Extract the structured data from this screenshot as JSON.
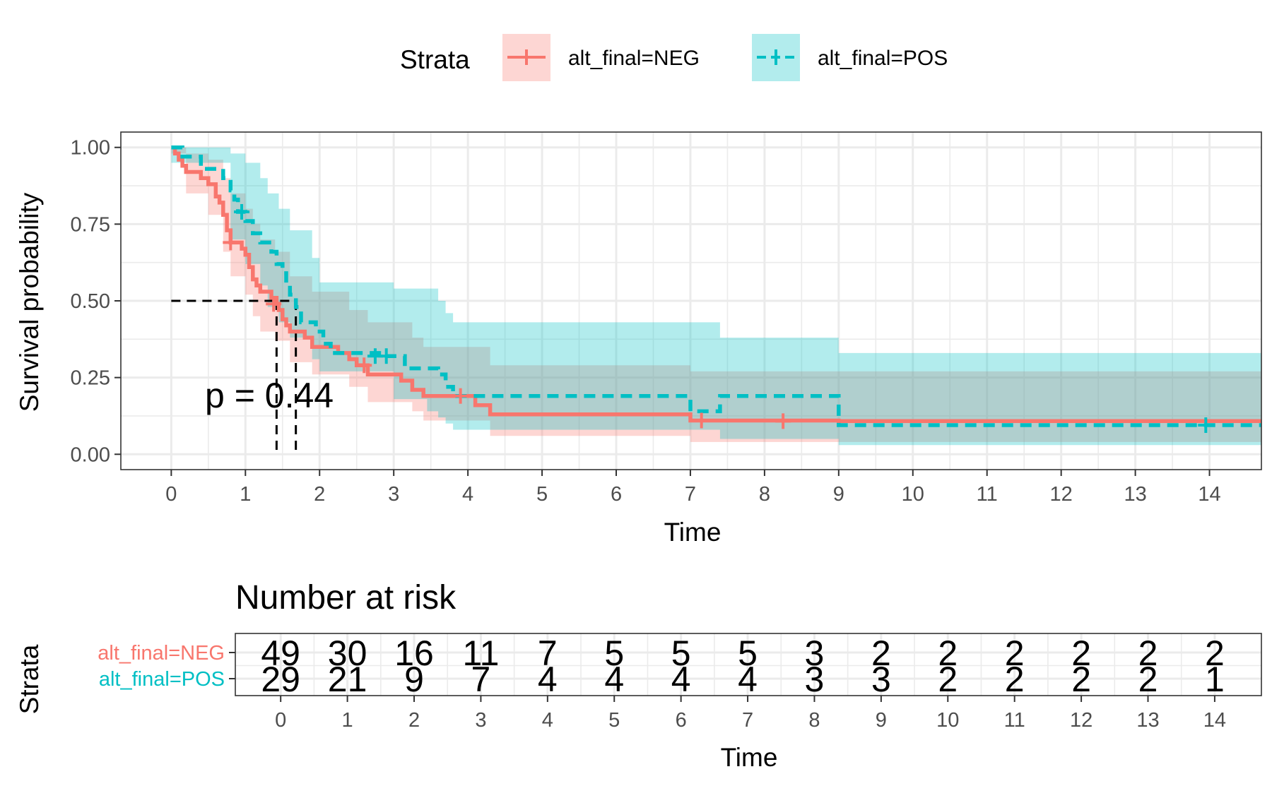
{
  "legend": {
    "title": "Strata",
    "entries": [
      {
        "label": "alt_final=NEG",
        "color": "#F8766D",
        "fill": "#F8766D",
        "linestyle": "solid"
      },
      {
        "label": "alt_final=POS",
        "color": "#00BFC4",
        "fill": "#00BFC4",
        "linestyle": "dashed"
      }
    ],
    "placement": "top"
  },
  "chart_data": [
    {
      "type": "line",
      "subtype": "kaplan-meier survival curve",
      "xlabel": "Time",
      "ylabel": "Survival probability",
      "xlim": [
        -0.68,
        14.7
      ],
      "ylim": [
        -0.05,
        1.05
      ],
      "x_ticks": [
        "0",
        "1",
        "2",
        "3",
        "4",
        "5",
        "6",
        "7",
        "8",
        "9",
        "10",
        "11",
        "12",
        "13",
        "14"
      ],
      "y_ticks": [
        "0.00",
        "0.25",
        "0.50",
        "0.75",
        "1.00"
      ],
      "grid": true,
      "annotation": "p = 0.44",
      "median_lines": {
        "y": 0.5,
        "x": [
          1.42,
          1.68
        ]
      },
      "series": [
        {
          "name": "alt_final=NEG",
          "color": "#F8766D",
          "linestyle": "solid",
          "steps": [
            [
              0,
              1.0
            ],
            [
              0.05,
              0.98
            ],
            [
              0.1,
              0.96
            ],
            [
              0.15,
              0.94
            ],
            [
              0.2,
              0.92
            ],
            [
              0.4,
              0.9
            ],
            [
              0.5,
              0.88
            ],
            [
              0.6,
              0.84
            ],
            [
              0.65,
              0.82
            ],
            [
              0.7,
              0.78
            ],
            [
              0.75,
              0.73
            ],
            [
              0.8,
              0.69
            ],
            [
              0.95,
              0.67
            ],
            [
              1.0,
              0.65
            ],
            [
              1.05,
              0.61
            ],
            [
              1.1,
              0.57
            ],
            [
              1.15,
              0.55
            ],
            [
              1.2,
              0.53
            ],
            [
              1.35,
              0.51
            ],
            [
              1.42,
              0.49
            ],
            [
              1.45,
              0.47
            ],
            [
              1.5,
              0.44
            ],
            [
              1.55,
              0.42
            ],
            [
              1.6,
              0.4
            ],
            [
              1.8,
              0.38
            ],
            [
              1.9,
              0.35
            ],
            [
              2.25,
              0.33
            ],
            [
              2.4,
              0.31
            ],
            [
              2.5,
              0.29
            ],
            [
              2.65,
              0.26
            ],
            [
              3.1,
              0.24
            ],
            [
              3.25,
              0.21
            ],
            [
              3.4,
              0.19
            ],
            [
              4.1,
              0.16
            ],
            [
              4.3,
              0.13
            ],
            [
              7.0,
              0.11
            ],
            [
              9.0,
              0.108
            ],
            [
              14.7,
              0.108
            ]
          ],
          "ci_upper": [
            [
              0,
              1.0
            ],
            [
              0.2,
              0.98
            ],
            [
              0.5,
              0.96
            ],
            [
              0.7,
              0.9
            ],
            [
              0.8,
              0.85
            ],
            [
              1.0,
              0.8
            ],
            [
              1.1,
              0.75
            ],
            [
              1.2,
              0.7
            ],
            [
              1.4,
              0.66
            ],
            [
              1.6,
              0.58
            ],
            [
              1.9,
              0.53
            ],
            [
              2.4,
              0.47
            ],
            [
              2.65,
              0.43
            ],
            [
              3.25,
              0.38
            ],
            [
              3.4,
              0.35
            ],
            [
              4.3,
              0.29
            ],
            [
              7.0,
              0.27
            ],
            [
              14.7,
              0.26
            ]
          ],
          "ci_lower": [
            [
              0,
              0.98
            ],
            [
              0.2,
              0.85
            ],
            [
              0.5,
              0.78
            ],
            [
              0.7,
              0.66
            ],
            [
              0.8,
              0.58
            ],
            [
              1.0,
              0.52
            ],
            [
              1.1,
              0.45
            ],
            [
              1.2,
              0.4
            ],
            [
              1.4,
              0.37
            ],
            [
              1.6,
              0.3
            ],
            [
              1.9,
              0.26
            ],
            [
              2.4,
              0.22
            ],
            [
              2.65,
              0.17
            ],
            [
              3.25,
              0.14
            ],
            [
              3.4,
              0.11
            ],
            [
              4.3,
              0.06
            ],
            [
              7.0,
              0.04
            ],
            [
              7.4,
              0.04
            ],
            [
              9.0,
              0.04
            ],
            [
              14.7,
              0.04
            ]
          ],
          "ci_end": 14.7,
          "censor": [
            [
              0.8,
              0.69
            ],
            [
              1.38,
              0.49
            ],
            [
              2.6,
              0.29
            ],
            [
              3.9,
              0.19
            ],
            [
              7.15,
              0.11
            ],
            [
              8.25,
              0.108
            ]
          ]
        },
        {
          "name": "alt_final=POS",
          "color": "#00BFC4",
          "linestyle": "dashed",
          "steps": [
            [
              0,
              1.0
            ],
            [
              0.15,
              0.97
            ],
            [
              0.4,
              0.93
            ],
            [
              0.7,
              0.9
            ],
            [
              0.8,
              0.86
            ],
            [
              0.85,
              0.83
            ],
            [
              0.9,
              0.79
            ],
            [
              1.0,
              0.76
            ],
            [
              1.1,
              0.72
            ],
            [
              1.2,
              0.69
            ],
            [
              1.35,
              0.66
            ],
            [
              1.42,
              0.62
            ],
            [
              1.5,
              0.59
            ],
            [
              1.55,
              0.55
            ],
            [
              1.6,
              0.52
            ],
            [
              1.68,
              0.48
            ],
            [
              1.75,
              0.43
            ],
            [
              1.95,
              0.4
            ],
            [
              2.05,
              0.36
            ],
            [
              2.15,
              0.33
            ],
            [
              2.5,
              0.33
            ],
            [
              2.85,
              0.32
            ],
            [
              3.15,
              0.28
            ],
            [
              3.6,
              0.26
            ],
            [
              3.7,
              0.22
            ],
            [
              3.8,
              0.19
            ],
            [
              7.4,
              0.19
            ],
            [
              7.0,
              0.14
            ],
            [
              9.0,
              0.095
            ],
            [
              14.7,
              0.095
            ]
          ],
          "ci_upper": [
            [
              0,
              1.0
            ],
            [
              0.8,
              0.98
            ],
            [
              1.0,
              0.95
            ],
            [
              1.2,
              0.9
            ],
            [
              1.3,
              0.85
            ],
            [
              1.45,
              0.8
            ],
            [
              1.6,
              0.73
            ],
            [
              1.9,
              0.64
            ],
            [
              2.0,
              0.56
            ],
            [
              3.0,
              0.54
            ],
            [
              3.6,
              0.5
            ],
            [
              3.7,
              0.46
            ],
            [
              3.8,
              0.43
            ],
            [
              7.4,
              0.38
            ],
            [
              9.0,
              0.33
            ],
            [
              14.7,
              0.33
            ]
          ],
          "ci_lower": [
            [
              0,
              0.95
            ],
            [
              0.8,
              0.7
            ],
            [
              1.0,
              0.62
            ],
            [
              1.2,
              0.55
            ],
            [
              1.3,
              0.48
            ],
            [
              1.45,
              0.43
            ],
            [
              1.6,
              0.38
            ],
            [
              1.9,
              0.31
            ],
            [
              2.0,
              0.27
            ],
            [
              3.0,
              0.18
            ],
            [
              3.45,
              0.14
            ],
            [
              3.6,
              0.12
            ],
            [
              3.7,
              0.1
            ],
            [
              3.8,
              0.08
            ],
            [
              7.4,
              0.05
            ],
            [
              9.0,
              0.03
            ],
            [
              14.7,
              0.03
            ]
          ],
          "ci_end": 14.7,
          "censor": [
            [
              0.95,
              0.79
            ],
            [
              2.75,
              0.32
            ],
            [
              2.9,
              0.32
            ],
            [
              13.95,
              0.095
            ]
          ]
        }
      ]
    },
    {
      "type": "table",
      "title": "Number at risk",
      "xlabel": "Time",
      "ylabel": "Strata",
      "x_ticks": [
        "0",
        "1",
        "2",
        "3",
        "4",
        "5",
        "6",
        "7",
        "8",
        "9",
        "10",
        "11",
        "12",
        "13",
        "14"
      ],
      "rows": [
        {
          "name": "alt_final=NEG",
          "color": "#F8766D",
          "values": [
            "49",
            "30",
            "16",
            "11",
            "7",
            "5",
            "5",
            "5",
            "3",
            "2",
            "2",
            "2",
            "2",
            "2",
            "2"
          ]
        },
        {
          "name": "alt_final=POS",
          "color": "#00BFC4",
          "values": [
            "29",
            "21",
            "9",
            "7",
            "4",
            "4",
            "4",
            "4",
            "3",
            "3",
            "2",
            "2",
            "2",
            "2",
            "1"
          ]
        }
      ]
    }
  ]
}
